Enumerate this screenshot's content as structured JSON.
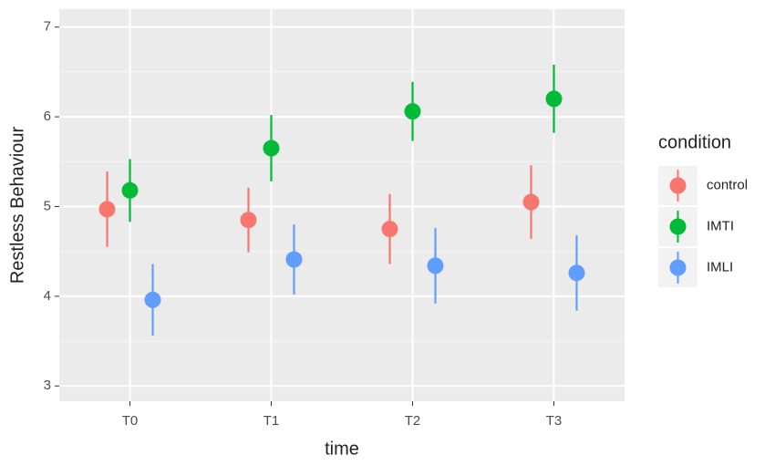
{
  "chart_data": {
    "type": "pointrange",
    "x_label": "time",
    "y_label": "Restless Behaviour",
    "categories": [
      "T0",
      "T1",
      "T2",
      "T3"
    ],
    "series": [
      {
        "name": "control",
        "color": "#F8766D",
        "values": [
          4.97,
          4.85,
          4.75,
          5.05
        ],
        "errors": [
          0.42,
          0.36,
          0.39,
          0.41
        ]
      },
      {
        "name": "IMTI",
        "color": "#00BA38",
        "values": [
          5.18,
          5.65,
          6.06,
          6.2
        ],
        "errors": [
          0.35,
          0.37,
          0.33,
          0.38
        ]
      },
      {
        "name": "IMLI",
        "color": "#619CFF",
        "values": [
          3.96,
          4.41,
          4.34,
          4.26
        ],
        "errors": [
          0.4,
          0.39,
          0.42,
          0.42
        ]
      }
    ],
    "ylim": [
      2.83,
      7.2
    ],
    "yticks": [
      3,
      4,
      5,
      6,
      7
    ],
    "y_minor_ticks": [
      3.5,
      4.5,
      5.5,
      6.5
    ],
    "grid": true,
    "legend_title": "condition",
    "legend_position": "right"
  }
}
